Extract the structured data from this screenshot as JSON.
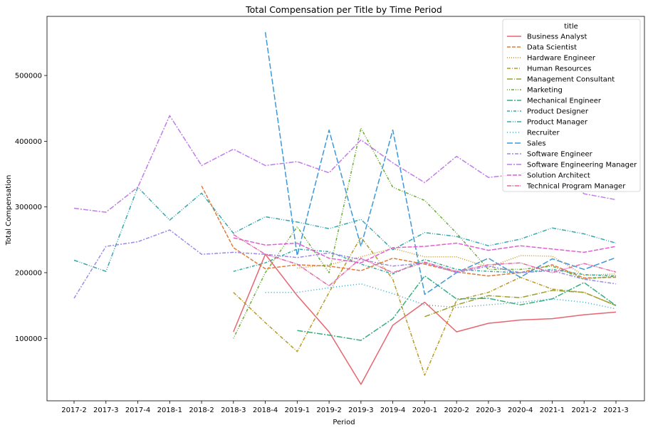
{
  "chart_data": {
    "type": "line",
    "title": "Total Compensation per Title by Time Period",
    "xlabel": "Period",
    "ylabel": "Total Compensation",
    "ylim": [
      5000,
      590000
    ],
    "yticks": [
      100000,
      200000,
      300000,
      400000,
      500000
    ],
    "grid": false,
    "legend_title": "title",
    "legend_position": "top-right",
    "categories": [
      "2017-2",
      "2017-3",
      "2017-4",
      "2018-1",
      "2018-2",
      "2018-3",
      "2018-4",
      "2019-1",
      "2019-2",
      "2019-3",
      "2019-4",
      "2020-1",
      "2020-2",
      "2020-3",
      "2020-4",
      "2021-1",
      "2021-2",
      "2021-3"
    ],
    "series": [
      {
        "name": "Business Analyst",
        "color": "#e8656f",
        "dash": "",
        "values": [
          null,
          null,
          null,
          null,
          null,
          110000,
          228000,
          165000,
          110000,
          30000,
          120000,
          155000,
          110000,
          123000,
          128000,
          130000,
          136000,
          140000
        ]
      },
      {
        "name": "Data Scientist",
        "color": "#e07b39",
        "dash": "5,2",
        "values": [
          null,
          null,
          null,
          null,
          332000,
          238000,
          206000,
          212000,
          210000,
          203000,
          222000,
          213000,
          201000,
          195000,
          200000,
          212000,
          192000,
          193000
        ]
      },
      {
        "name": "Hardware Engineer",
        "color": "#c99424",
        "dash": "1,2",
        "values": [
          null,
          null,
          null,
          null,
          null,
          null,
          null,
          207000,
          212000,
          224000,
          237000,
          224000,
          224000,
          208000,
          226000,
          225000,
          196000,
          198000
        ]
      },
      {
        "name": "Human Resources",
        "color": "#b79a22",
        "dash": "5,2,1,2",
        "values": [
          null,
          null,
          null,
          null,
          null,
          170000,
          124000,
          80000,
          170000,
          254000,
          190000,
          44000,
          158000,
          170000,
          193000,
          175000,
          170000,
          150000
        ]
      },
      {
        "name": "Management Consultant",
        "color": "#9aa12e",
        "dash": "8,2,1,2",
        "values": [
          null,
          null,
          null,
          null,
          null,
          null,
          null,
          null,
          null,
          null,
          null,
          133000,
          151000,
          165000,
          162000,
          173000,
          170000,
          150000
        ]
      },
      {
        "name": "Marketing",
        "color": "#6aac32",
        "dash": "1,2,1,2,4,2",
        "values": [
          null,
          null,
          null,
          null,
          null,
          100000,
          200000,
          270000,
          200000,
          420000,
          330000,
          310000,
          260000,
          205000,
          205000,
          210000,
          190000,
          195000
        ]
      },
      {
        "name": "Mechanical Engineer",
        "color": "#36ae7e",
        "dash": "8,2,2,2",
        "values": [
          null,
          null,
          null,
          null,
          null,
          null,
          null,
          112000,
          105000,
          97000,
          130000,
          195000,
          160000,
          161000,
          151000,
          160000,
          185000,
          150000
        ]
      },
      {
        "name": "Product Designer",
        "color": "#34aa9c",
        "dash": "4,2,1,2",
        "values": [
          null,
          null,
          null,
          null,
          null,
          202000,
          215000,
          236000,
          232000,
          213000,
          198000,
          220000,
          205000,
          202000,
          200000,
          205000,
          197000,
          195000
        ]
      },
      {
        "name": "Product Manager",
        "color": "#36a8ae",
        "dash": "6,2,1,2,1,2",
        "values": [
          219000,
          202000,
          330000,
          280000,
          321000,
          260000,
          285000,
          277000,
          267000,
          281000,
          235000,
          261000,
          255000,
          241000,
          251000,
          268000,
          259000,
          245000
        ]
      },
      {
        "name": "Recruiter",
        "color": "#39a4c0",
        "dash": "1,3",
        "values": [
          null,
          null,
          null,
          null,
          null,
          null,
          170000,
          170000,
          177000,
          183000,
          168000,
          151000,
          147000,
          151000,
          155000,
          160000,
          155000,
          145000
        ]
      },
      {
        "name": "Sales",
        "color": "#3d98d8",
        "dash": "8,3",
        "values": [
          null,
          null,
          null,
          null,
          null,
          null,
          566000,
          226000,
          417000,
          240000,
          417000,
          167000,
          200000,
          222000,
          193000,
          221000,
          205000,
          223000
        ]
      },
      {
        "name": "Software Engineer",
        "color": "#9b8ae8",
        "dash": "5,2,2,2",
        "values": [
          161000,
          240000,
          247000,
          265000,
          228000,
          231000,
          228000,
          223000,
          230000,
          220000,
          210000,
          215000,
          200000,
          210000,
          200000,
          203000,
          190000,
          183000
        ]
      },
      {
        "name": "Software Engineering Manager",
        "color": "#c07ce8",
        "dash": "7,2,2,2",
        "values": [
          298000,
          292000,
          330000,
          439000,
          363000,
          388000,
          363000,
          369000,
          352000,
          402000,
          367000,
          337000,
          377000,
          345000,
          350000,
          365000,
          320000,
          311000
        ]
      },
      {
        "name": "Solution Architect",
        "color": "#e260d0",
        "dash": "6,2",
        "values": [
          null,
          null,
          null,
          null,
          null,
          253000,
          242000,
          245000,
          222000,
          215000,
          238000,
          240000,
          245000,
          234000,
          241000,
          236000,
          231000,
          240000
        ]
      },
      {
        "name": "Technical Program Manager",
        "color": "#e36aa6",
        "dash": "6,1,1,1,1,1",
        "values": [
          null,
          null,
          null,
          null,
          null,
          258000,
          228000,
          213000,
          180000,
          222000,
          200000,
          216000,
          202000,
          212000,
          215000,
          200000,
          214000,
          201000
        ]
      }
    ]
  }
}
